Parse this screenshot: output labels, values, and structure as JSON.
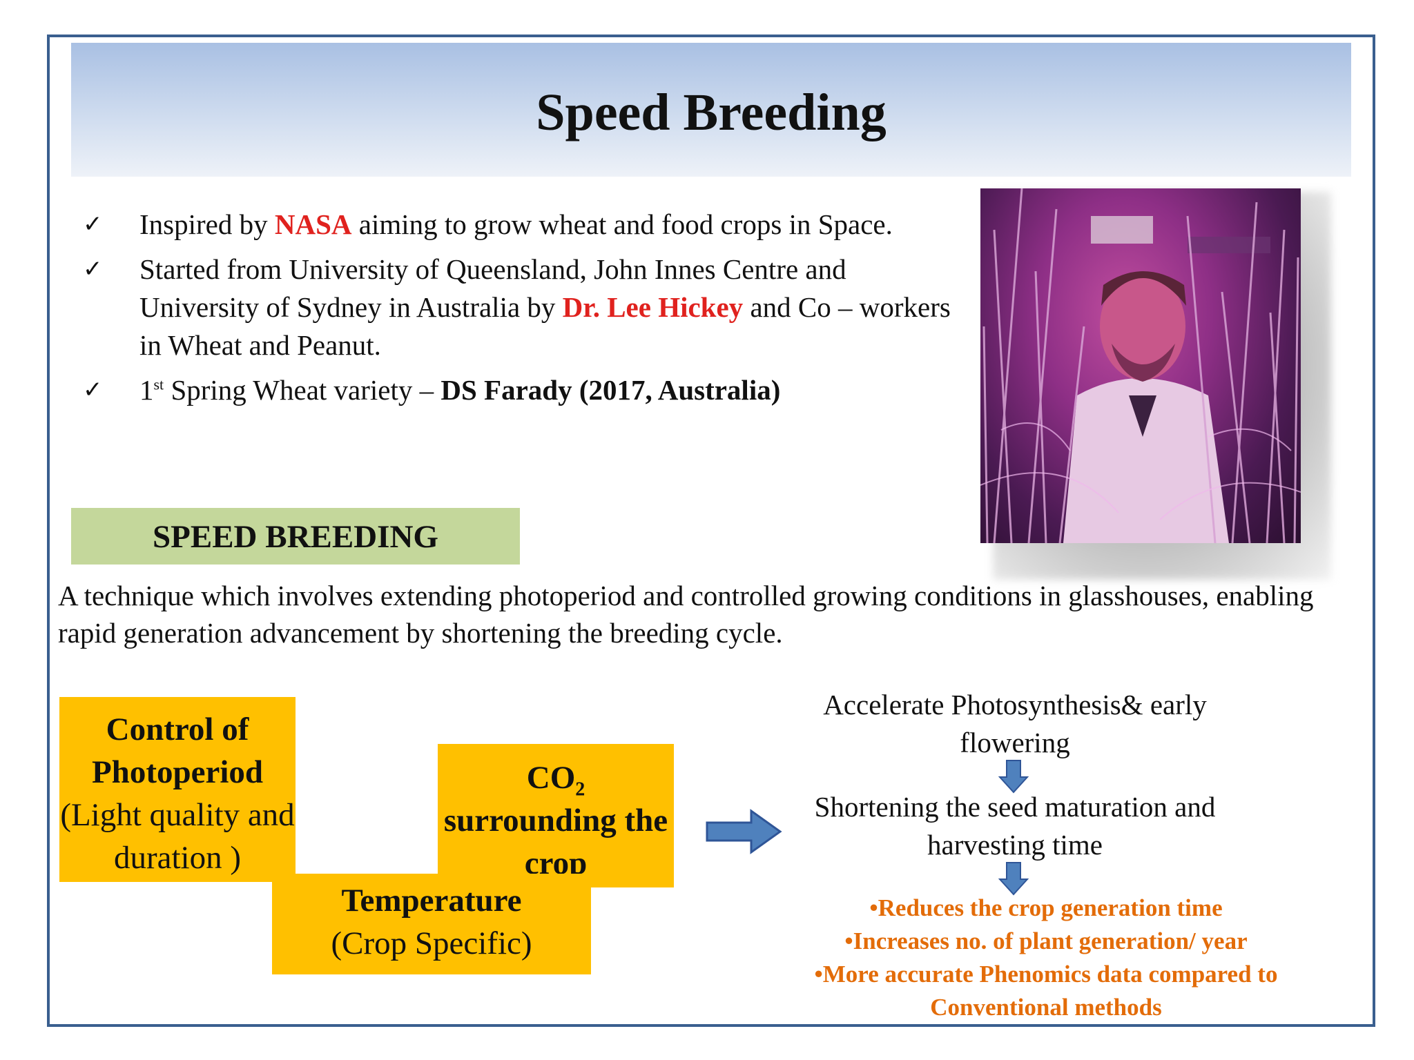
{
  "title": "Speed Breeding",
  "bullets": [
    {
      "pre": " Inspired by ",
      "highlight": "NASA",
      "post": " aiming to grow wheat and food crops in Space."
    },
    {
      "pre": "Started from University of Queensland, John Innes Centre and University of Sydney in Australia by ",
      "highlight": "Dr. Lee Hickey",
      "post": " and Co – workers in Wheat and Peanut."
    },
    {
      "pre": "1",
      "sup": "st",
      "mid": " Spring Wheat variety – ",
      "bold": "DS Farady (2017, Australia)"
    }
  ],
  "section_label": "SPEED BREEDING",
  "definition": "A technique which involves extending photoperiod and controlled growing conditions in glasshouses, enabling rapid generation advancement by shortening the breeding cycle.",
  "factors": {
    "photoperiod": {
      "title": "Control of Photoperiod",
      "detail": "(Light quality and duration )"
    },
    "co2": {
      "prefix": "CO",
      "sub": "2",
      "rest": "surrounding the crop"
    },
    "temperature": {
      "title": "Temperature",
      "detail": "(Crop Specific)"
    }
  },
  "effects": {
    "step1": "Accelerate Photosynthesis& early flowering",
    "step2": "Shortening the seed maturation and harvesting time"
  },
  "outcomes": [
    "•Reduces the crop generation time",
    "•Increases no. of plant generation/ year",
    "•More accurate Phenomics data compared to Conventional methods"
  ],
  "colors": {
    "frame": "#3a5f8f",
    "highlight_red": "#e0221e",
    "factor_box": "#ffc000",
    "label_box": "#c4d79b",
    "outcome_orange": "#e36c09",
    "arrow_blue": "#4f81bd"
  }
}
